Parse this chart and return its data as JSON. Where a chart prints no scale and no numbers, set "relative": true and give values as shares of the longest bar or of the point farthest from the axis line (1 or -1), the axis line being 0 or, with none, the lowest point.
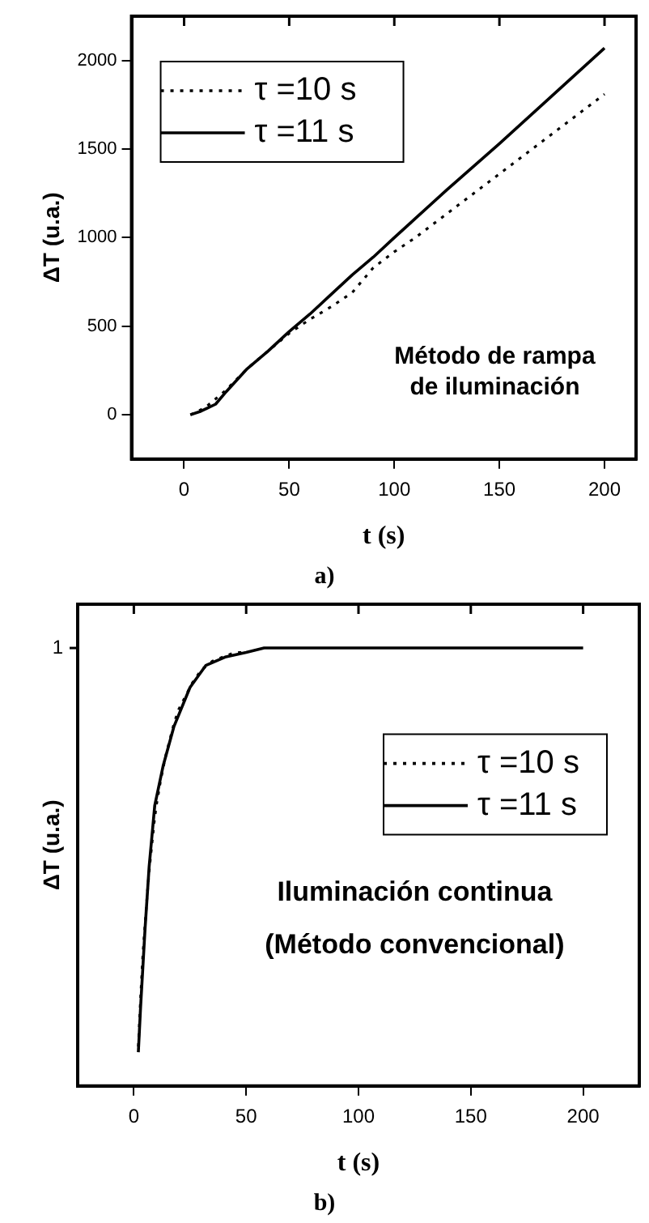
{
  "chart_data": [
    {
      "type": "line",
      "title": "a)",
      "xlabel": "t (s)",
      "ylabel": "ΔT (u.a.)",
      "xlim": [
        -25,
        215
      ],
      "xticks": [
        0,
        50,
        100,
        150,
        200
      ],
      "ylim": [
        -250,
        2250
      ],
      "yticks": [
        0,
        500,
        1000,
        1500,
        2000
      ],
      "grid": false,
      "legend": "top left",
      "marker": "none",
      "annotations": [
        "Método de rampa",
        "de iluminación"
      ],
      "series": [
        {
          "name": "τ =10 s",
          "color": "#000000",
          "line_style": "dotted",
          "x": [
            3,
            10,
            20,
            30,
            40,
            50,
            60,
            70,
            80,
            90,
            100,
            110,
            120,
            130,
            140,
            150,
            160,
            170,
            180,
            190,
            200
          ],
          "values": [
            0,
            40,
            140,
            260,
            360,
            460,
            540,
            610,
            690,
            830,
            920,
            1000,
            1090,
            1180,
            1270,
            1360,
            1450,
            1540,
            1630,
            1720,
            1810
          ]
        },
        {
          "name": "τ =11 s",
          "color": "#000000",
          "line_style": "solid",
          "x": [
            3,
            8,
            15,
            20,
            30,
            40,
            50,
            60,
            70,
            80,
            90,
            100,
            125,
            150,
            175,
            200
          ],
          "values": [
            0,
            20,
            60,
            130,
            260,
            360,
            470,
            570,
            680,
            790,
            890,
            1000,
            1270,
            1530,
            1800,
            2070
          ]
        }
      ]
    },
    {
      "type": "line",
      "title": "b)",
      "xlabel": "t (s)",
      "ylabel": "ΔT (u.a.)",
      "xlim": [
        -25,
        225
      ],
      "xticks": [
        0,
        50,
        100,
        150,
        200
      ],
      "relative": true,
      "grid": false,
      "legend": "right",
      "marker": "none",
      "annotations": [
        "1",
        "Iluminación continua",
        "(Método convencional)"
      ],
      "series": [
        {
          "name": "τ =10 s",
          "color": "#000000",
          "line_style": "dotted",
          "x": [
            2,
            3,
            4,
            5,
            6,
            7,
            8,
            9,
            10,
            12,
            14,
            16,
            18,
            20,
            23,
            26,
            30,
            35,
            40,
            45,
            50
          ],
          "values": [
            0.09,
            0.2,
            0.3,
            0.37,
            0.44,
            0.5,
            0.55,
            0.6,
            0.64,
            0.7,
            0.75,
            0.79,
            0.83,
            0.86,
            0.89,
            0.92,
            0.95,
            0.97,
            0.98,
            0.99,
            0.99
          ]
        },
        {
          "name": "τ =11 s",
          "color": "#000000",
          "line_style": "solid",
          "x": [
            2,
            3,
            4,
            5,
            6.8,
            9.3,
            13,
            17.8,
            25,
            32,
            41,
            50,
            58,
            100,
            150,
            200
          ],
          "values": [
            0.077,
            0.18,
            0.27,
            0.36,
            0.5,
            0.64,
            0.73,
            0.82,
            0.91,
            0.96,
            0.98,
            0.99,
            1,
            1,
            1,
            1
          ]
        }
      ]
    }
  ]
}
